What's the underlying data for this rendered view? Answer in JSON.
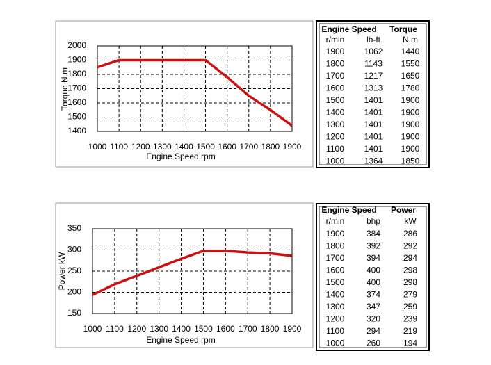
{
  "chart_data": [
    {
      "type": "line",
      "xlabel": "Engine Speed rpm",
      "ylabel": "Torque N.m",
      "x": [
        1000,
        1100,
        1200,
        1300,
        1400,
        1500,
        1600,
        1700,
        1800,
        1900
      ],
      "values": [
        1850,
        1900,
        1900,
        1900,
        1900,
        1900,
        1780,
        1650,
        1550,
        1440
      ],
      "color": "#cc1111",
      "xlim": [
        1000,
        1900
      ],
      "ylim": [
        1400,
        2000
      ],
      "xticks": [
        1000,
        1100,
        1200,
        1300,
        1400,
        1500,
        1600,
        1700,
        1800,
        1900
      ],
      "yticks": [
        1400,
        1500,
        1600,
        1700,
        1800,
        1900,
        2000
      ],
      "grid": true
    },
    {
      "type": "line",
      "xlabel": "Engine Speed rpm",
      "ylabel": "Power kW",
      "x": [
        1000,
        1100,
        1200,
        1300,
        1400,
        1500,
        1600,
        1700,
        1800,
        1900
      ],
      "values": [
        194,
        219,
        239,
        259,
        279,
        298,
        298,
        294,
        292,
        286
      ],
      "color": "#cc1111",
      "xlim": [
        1000,
        1900
      ],
      "ylim": [
        150,
        350
      ],
      "xticks": [
        1000,
        1100,
        1200,
        1300,
        1400,
        1500,
        1600,
        1700,
        1800,
        1900
      ],
      "yticks": [
        150,
        200,
        250,
        300,
        350
      ],
      "grid": true
    }
  ],
  "tables": [
    {
      "header": "Engine Speed",
      "title": "Torque",
      "units": [
        "r/min",
        "lb-ft",
        "N.m"
      ],
      "rows": [
        [
          1900,
          1062,
          1440
        ],
        [
          1800,
          1143,
          1550
        ],
        [
          1700,
          1217,
          1650
        ],
        [
          1600,
          1313,
          1780
        ],
        [
          1500,
          1401,
          1900
        ],
        [
          1400,
          1401,
          1900
        ],
        [
          1300,
          1401,
          1900
        ],
        [
          1200,
          1401,
          1900
        ],
        [
          1100,
          1401,
          1900
        ],
        [
          1000,
          1364,
          1850
        ]
      ]
    },
    {
      "header": "Engine Speed",
      "title": "Power",
      "units": [
        "r/min",
        "bhp",
        "kW"
      ],
      "rows": [
        [
          1900,
          384,
          286
        ],
        [
          1800,
          392,
          292
        ],
        [
          1700,
          394,
          294
        ],
        [
          1600,
          400,
          298
        ],
        [
          1500,
          400,
          298
        ],
        [
          1400,
          374,
          279
        ],
        [
          1300,
          347,
          259
        ],
        [
          1200,
          320,
          239
        ],
        [
          1100,
          294,
          219
        ],
        [
          1000,
          260,
          194
        ]
      ]
    }
  ]
}
